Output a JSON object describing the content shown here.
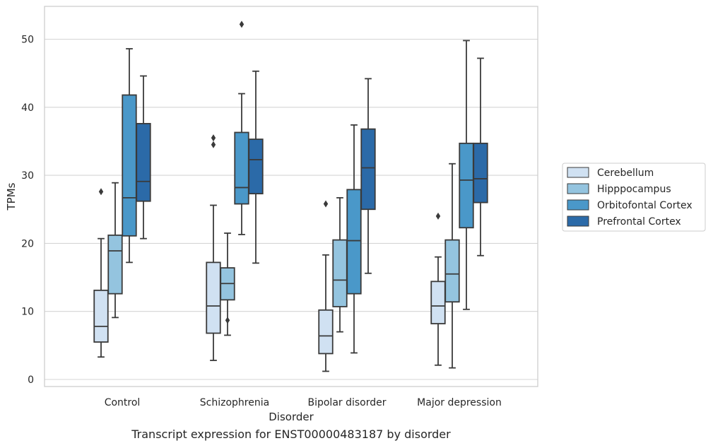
{
  "caption": "Transcript expression for ENST00000483187 by disorder",
  "chart_data": {
    "type": "box",
    "xlabel": "Disorder",
    "ylabel": "TPMs",
    "ylim": [
      -1,
      55
    ],
    "yticks": [
      0,
      10,
      20,
      30,
      40,
      50
    ],
    "grid": true,
    "legend_position": "right",
    "categories": [
      "Control",
      "Schizophrenia",
      "Bipolar disorder",
      "Major depression"
    ],
    "series": [
      {
        "name": "Cerebellum",
        "color": "#d0e1f2",
        "boxes": [
          {
            "whisker_low": 3.3,
            "q1": 5.5,
            "median": 7.8,
            "q3": 13.1,
            "whisker_high": 20.7,
            "outliers": [
              27.6
            ]
          },
          {
            "whisker_low": 2.8,
            "q1": 6.8,
            "median": 10.8,
            "q3": 17.2,
            "whisker_high": 25.6,
            "outliers": [
              34.5,
              35.5
            ]
          },
          {
            "whisker_low": 1.2,
            "q1": 3.8,
            "median": 6.4,
            "q3": 10.2,
            "whisker_high": 18.3,
            "outliers": [
              25.8
            ]
          },
          {
            "whisker_low": 2.1,
            "q1": 8.2,
            "median": 10.8,
            "q3": 14.4,
            "whisker_high": 18.0,
            "outliers": [
              24.0
            ]
          }
        ]
      },
      {
        "name": "Hipppocampus",
        "color": "#94c4df",
        "boxes": [
          {
            "whisker_low": 9.1,
            "q1": 12.6,
            "median": 18.9,
            "q3": 21.2,
            "whisker_high": 28.9,
            "outliers": []
          },
          {
            "whisker_low": 6.5,
            "q1": 11.7,
            "median": 14.1,
            "q3": 16.4,
            "whisker_high": 21.5,
            "outliers": [
              8.7
            ]
          },
          {
            "whisker_low": 7.0,
            "q1": 10.7,
            "median": 14.6,
            "q3": 20.5,
            "whisker_high": 26.7,
            "outliers": []
          },
          {
            "whisker_low": 1.7,
            "q1": 11.4,
            "median": 15.5,
            "q3": 20.5,
            "whisker_high": 31.7,
            "outliers": []
          }
        ]
      },
      {
        "name": "Orbitofontal Cortex",
        "color": "#4a98c9",
        "boxes": [
          {
            "whisker_low": 17.2,
            "q1": 21.1,
            "median": 26.7,
            "q3": 41.8,
            "whisker_high": 48.6,
            "outliers": []
          },
          {
            "whisker_low": 21.3,
            "q1": 25.8,
            "median": 28.2,
            "q3": 36.3,
            "whisker_high": 42.0,
            "outliers": [
              52.2
            ]
          },
          {
            "whisker_low": 3.9,
            "q1": 12.6,
            "median": 20.4,
            "q3": 27.9,
            "whisker_high": 37.4,
            "outliers": []
          },
          {
            "whisker_low": 10.3,
            "q1": 22.3,
            "median": 29.3,
            "q3": 34.7,
            "whisker_high": 49.8,
            "outliers": []
          }
        ]
      },
      {
        "name": "Prefrontal Cortex",
        "color": "#2b6aa8",
        "boxes": [
          {
            "whisker_low": 20.7,
            "q1": 26.2,
            "median": 29.1,
            "q3": 37.6,
            "whisker_high": 44.6,
            "outliers": []
          },
          {
            "whisker_low": 17.1,
            "q1": 27.3,
            "median": 32.3,
            "q3": 35.3,
            "whisker_high": 45.3,
            "outliers": []
          },
          {
            "whisker_low": 15.6,
            "q1": 25.0,
            "median": 31.1,
            "q3": 36.8,
            "whisker_high": 44.2,
            "outliers": []
          },
          {
            "whisker_low": 18.2,
            "q1": 26.0,
            "median": 29.5,
            "q3": 34.7,
            "whisker_high": 47.2,
            "outliers": []
          }
        ]
      }
    ]
  }
}
